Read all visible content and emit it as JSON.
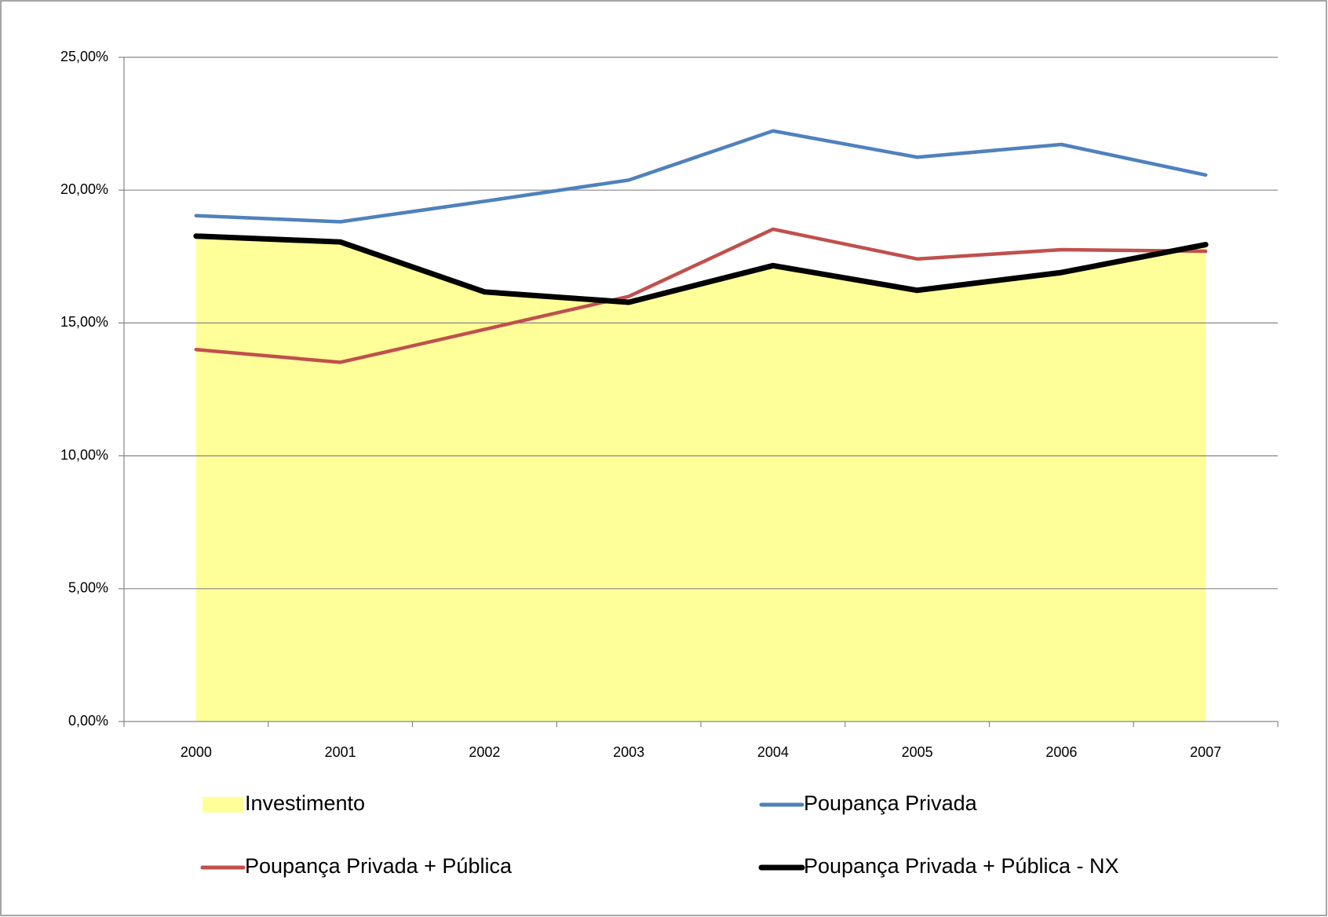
{
  "chart_data": {
    "type": "line",
    "categories": [
      "2000",
      "2001",
      "2002",
      "2003",
      "2004",
      "2005",
      "2006",
      "2007"
    ],
    "series": [
      {
        "name": "Investimento",
        "type": "area",
        "color": "#ffff99",
        "values": [
          18.27,
          18.05,
          16.17,
          15.78,
          17.16,
          16.23,
          16.9,
          17.95
        ]
      },
      {
        "name": "Poupança Privada",
        "color": "#4f81bd",
        "values": [
          19.04,
          18.81,
          19.58,
          20.38,
          22.23,
          21.24,
          21.72,
          20.57
        ]
      },
      {
        "name": "Poupança Privada + Pública",
        "color": "#c0504d",
        "values": [
          14.0,
          13.52,
          14.76,
          16.0,
          18.53,
          17.41,
          17.76,
          17.7
        ]
      },
      {
        "name": "Poupança Privada + Pública - NX",
        "color": "#000000",
        "values": [
          18.27,
          18.05,
          16.17,
          15.78,
          17.16,
          16.23,
          16.9,
          17.95
        ]
      }
    ],
    "ylim": [
      0,
      25
    ],
    "yticks": [
      {
        "value": 0,
        "label": "0,00%"
      },
      {
        "value": 5,
        "label": "5,00%"
      },
      {
        "value": 10,
        "label": "10,00%"
      },
      {
        "value": 15,
        "label": "15,00%"
      },
      {
        "value": 20,
        "label": "20,00%"
      },
      {
        "value": 25,
        "label": "25,00%"
      }
    ],
    "grid": true
  }
}
